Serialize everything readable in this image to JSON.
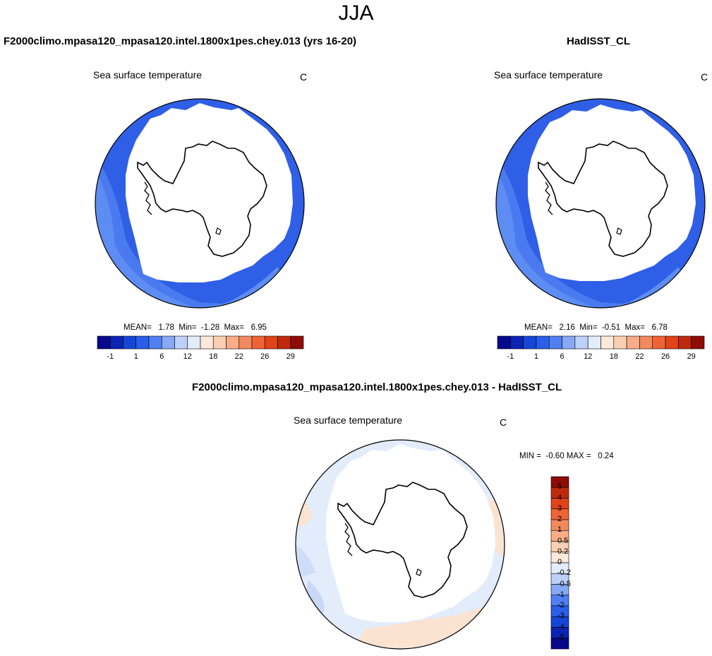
{
  "season": "JJA",
  "panels": [
    {
      "title": "F2000climo.mpasa120_mpasa120.intel.1800x1pes.chey.013 (yrs 16-20)",
      "variable": "Sea surface temperature",
      "units": "C",
      "stats": "MEAN=   1.78  Min=  -1.28  Max=   6.95"
    },
    {
      "title": "HadISST_CL",
      "variable": "Sea surface temperature",
      "units": "C",
      "stats": "MEAN=   2.16  Min=  -0.51  Max=   6.78"
    },
    {
      "title": "F2000climo.mpasa120_mpasa120.intel.1800x1pes.chey.013 - HadISST_CL",
      "variable": "Sea surface temperature",
      "units": "C",
      "stats": "MIN =  -0.60 MAX =   0.24"
    }
  ],
  "abs_colorbar": {
    "labels": [
      "-1",
      "1",
      "6",
      "12",
      "18",
      "22",
      "26",
      "29"
    ],
    "colors": [
      "#08088a",
      "#0b24b4",
      "#1646d6",
      "#2a5ee8",
      "#4f7ff2",
      "#86a8f5",
      "#bcd0f8",
      "#e3ecfb",
      "#fde9da",
      "#fbcfb2",
      "#f8ad88",
      "#f38a5e",
      "#ef6436",
      "#e04418",
      "#c02a0c",
      "#8e0c06"
    ]
  },
  "diff_colorbar": {
    "labels": [
      "5",
      "4",
      "3",
      "2",
      "1",
      "0.5",
      "0.2",
      "0",
      "-0.2",
      "-0.5",
      "-1",
      "-2",
      "-3",
      "-4",
      "-5"
    ],
    "colors": [
      "#8e0c06",
      "#c02a0c",
      "#e04418",
      "#ef6436",
      "#f38a5e",
      "#f8ad88",
      "#fbcfb2",
      "#fde9da",
      "#e3ecfb",
      "#bcd0f8",
      "#86a8f5",
      "#4f7ff2",
      "#2a5ee8",
      "#1646d6",
      "#0b24b4",
      "#08088a"
    ]
  }
}
